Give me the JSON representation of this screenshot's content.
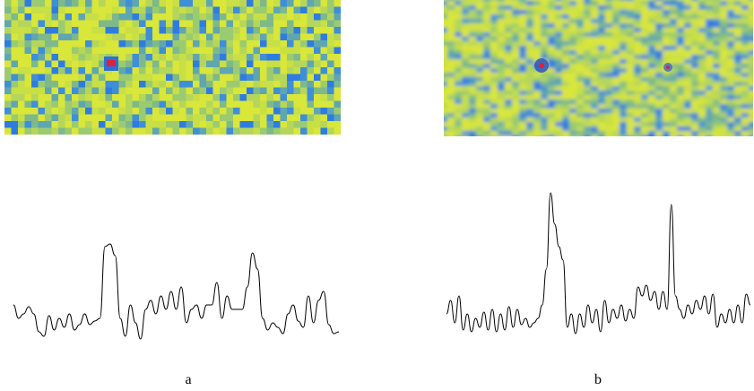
{
  "panels": [
    {
      "label": "a",
      "profile": [
        40,
        25,
        30,
        38,
        30,
        10,
        5,
        28,
        12,
        25,
        15,
        30,
        12,
        18,
        30,
        18,
        22,
        25,
        105,
        108,
        95,
        25,
        5,
        40,
        20,
        2,
        35,
        45,
        30,
        50,
        35,
        55,
        35,
        60,
        20,
        35,
        40,
        25,
        40,
        40,
        65,
        25,
        50,
        35,
        35,
        35,
        60,
        98,
        80,
        25,
        12,
        20,
        15,
        8,
        30,
        40,
        22,
        15,
        50,
        20,
        45,
        55,
        18,
        8,
        10
      ]
    },
    {
      "label": "b",
      "profile": [
        30,
        45,
        20,
        50,
        12,
        30,
        10,
        25,
        15,
        32,
        12,
        35,
        10,
        30,
        12,
        38,
        15,
        35,
        18,
        25,
        15,
        20,
        25,
        40,
        80,
        165,
        130,
        105,
        90,
        15,
        30,
        8,
        30,
        15,
        40,
        20,
        35,
        10,
        45,
        20,
        35,
        25,
        40,
        22,
        35,
        25,
        60,
        50,
        62,
        45,
        55,
        35,
        55,
        35,
        152,
        50,
        35,
        25,
        40,
        30,
        45,
        35,
        50,
        30,
        52,
        15,
        30,
        20,
        35,
        20,
        40,
        20,
        52,
        40
      ]
    }
  ]
}
